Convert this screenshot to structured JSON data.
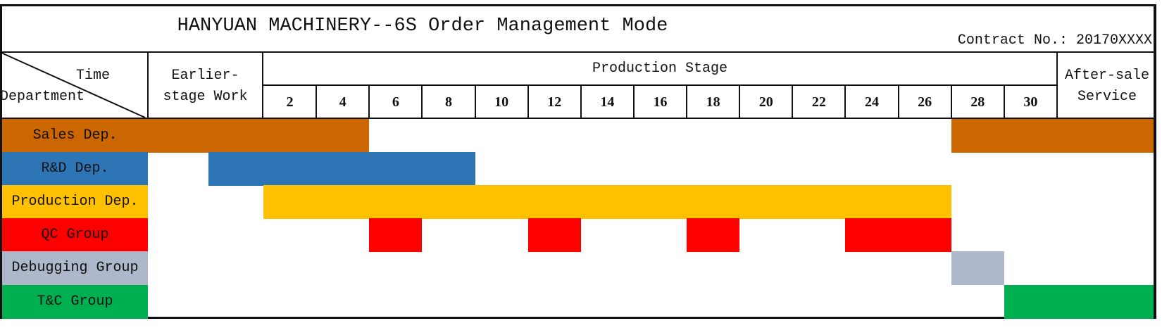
{
  "title": "HANYUAN MACHINERY--6S Order Management Mode",
  "contract": {
    "label": "Contract No.:",
    "value": "20170XXXX"
  },
  "header": {
    "corner_top": "Time",
    "corner_bottom": "Department",
    "earlier_line1": "Earlier-",
    "earlier_line2": "stage Work",
    "production_stage": "Production Stage",
    "aftersale_line1": "After-sale",
    "aftersale_line2": "Service",
    "columns": [
      "2",
      "4",
      "6",
      "8",
      "10",
      "12",
      "14",
      "16",
      "18",
      "20",
      "22",
      "24",
      "26",
      "28",
      "30"
    ]
  },
  "colors": {
    "sales": "#CC6600",
    "rd": "#2E75B6",
    "production": "#FFC000",
    "qc": "#FF0000",
    "debugging": "#ADB9CA",
    "tc": "#00B050"
  },
  "departments": [
    {
      "name": "Sales Dep.",
      "color_key": "sales",
      "spans": [
        {
          "from": "label",
          "to": "col-4"
        },
        {
          "from": "col-28",
          "to": "aftersale"
        }
      ]
    },
    {
      "name": "R&D Dep.",
      "color_key": "rd",
      "spans": [
        {
          "from": "label",
          "to": "label"
        },
        {
          "from": "earlier-half",
          "to": "col-8"
        }
      ]
    },
    {
      "name": "Production Dep.",
      "color_key": "production",
      "spans": [
        {
          "from": "label",
          "to": "label"
        },
        {
          "from": "col-2",
          "to": "col-26"
        }
      ]
    },
    {
      "name": "QC Group",
      "color_key": "qc",
      "spans": [
        {
          "from": "label",
          "to": "label"
        },
        {
          "from": "col-6",
          "to": "col-6"
        },
        {
          "from": "col-12",
          "to": "col-12"
        },
        {
          "from": "col-18",
          "to": "col-18"
        },
        {
          "from": "col-24",
          "to": "col-26"
        }
      ]
    },
    {
      "name": "Debugging Group",
      "color_key": "debugging",
      "spans": [
        {
          "from": "label",
          "to": "label"
        },
        {
          "from": "col-28",
          "to": "col-28"
        }
      ]
    },
    {
      "name": "T&C Group",
      "color_key": "tc",
      "spans": [
        {
          "from": "label",
          "to": "label"
        },
        {
          "from": "col-30",
          "to": "aftersale"
        }
      ]
    }
  ]
}
